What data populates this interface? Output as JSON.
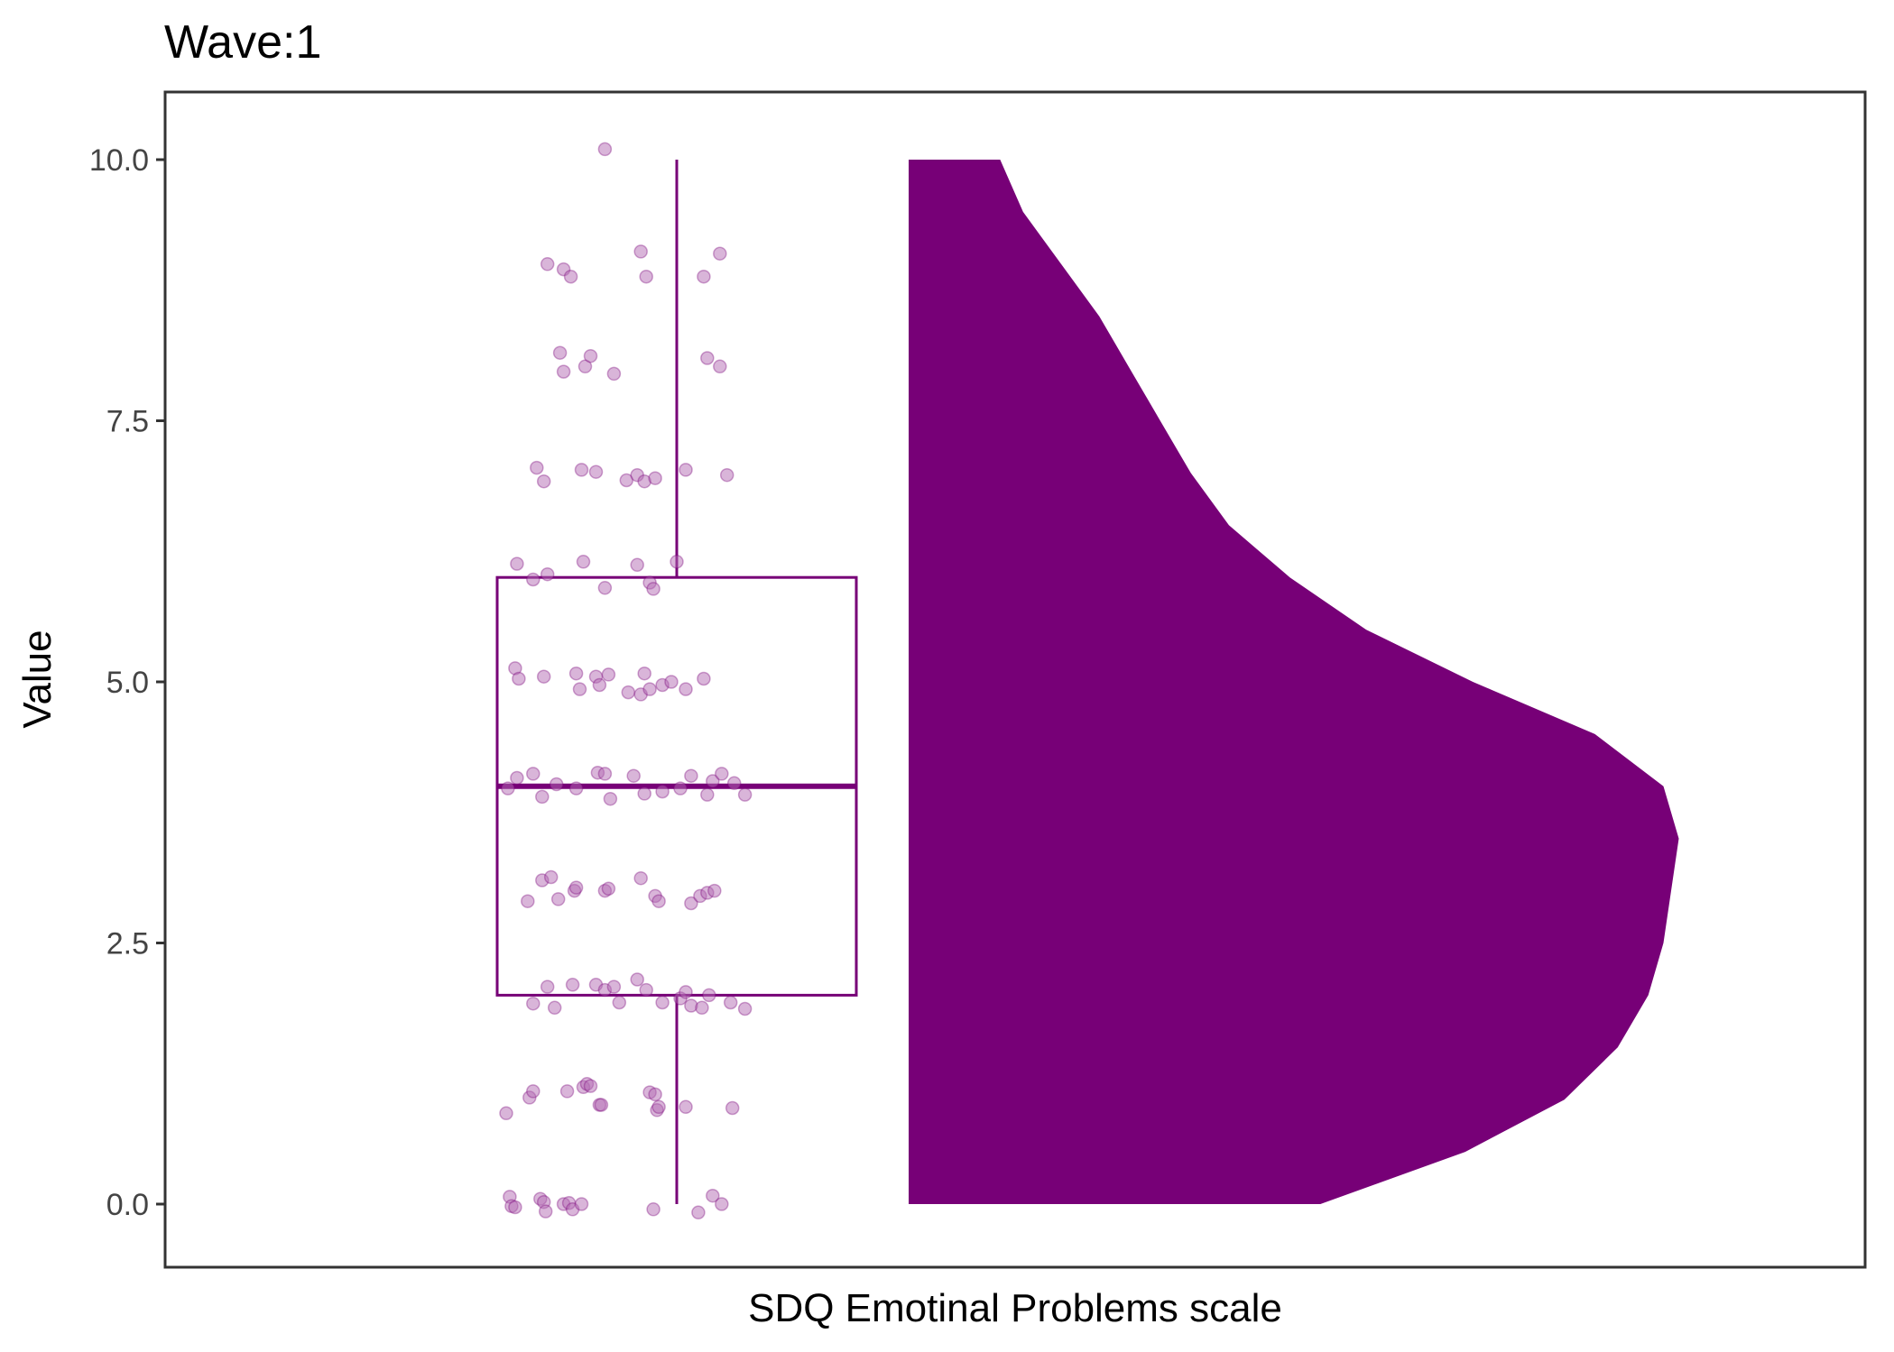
{
  "chart_data": {
    "type": "raincloud",
    "title": "Wave:1",
    "xlabel": "SDQ Emotinal Problems scale",
    "ylabel": "Value",
    "ylim": [
      -0.6,
      10.6
    ],
    "yticks": [
      "0.0",
      "2.5",
      "5.0",
      "7.5",
      "10.0"
    ],
    "ytick_values": [
      0,
      2.5,
      5,
      7.5,
      10
    ],
    "grid": false,
    "legend": "none",
    "colors": {
      "accent": "#770077",
      "points": "#b36bb3",
      "axis": "#333333"
    },
    "boxplot": {
      "min": 0,
      "q1": 2,
      "median": 4,
      "q3": 6,
      "max": 10
    },
    "density": {
      "values": [
        0,
        0.5,
        1,
        1.5,
        2,
        2.5,
        3,
        3.5,
        4,
        4.5,
        5,
        5.5,
        6,
        6.5,
        7,
        7.5,
        8,
        8.5,
        9,
        9.5,
        10
      ],
      "widths": [
        0.54,
        0.73,
        0.86,
        0.93,
        0.97,
        0.99,
        1.0,
        1.01,
        0.99,
        0.9,
        0.74,
        0.6,
        0.5,
        0.42,
        0.37,
        0.33,
        0.29,
        0.25,
        0.2,
        0.15,
        0.12
      ]
    },
    "points": [
      {
        "x": -0.4,
        "y": 10.1
      },
      {
        "x": -0.72,
        "y": 9.0
      },
      {
        "x": -0.63,
        "y": 8.95
      },
      {
        "x": -0.59,
        "y": 8.88
      },
      {
        "x": -0.17,
        "y": 8.88
      },
      {
        "x": -0.2,
        "y": 9.12
      },
      {
        "x": 0.15,
        "y": 8.88
      },
      {
        "x": 0.24,
        "y": 9.1
      },
      {
        "x": -0.65,
        "y": 8.15
      },
      {
        "x": -0.63,
        "y": 7.97
      },
      {
        "x": -0.51,
        "y": 8.02
      },
      {
        "x": -0.48,
        "y": 8.12
      },
      {
        "x": -0.35,
        "y": 7.95
      },
      {
        "x": 0.17,
        "y": 8.1
      },
      {
        "x": 0.24,
        "y": 8.02
      },
      {
        "x": -0.78,
        "y": 7.05
      },
      {
        "x": -0.74,
        "y": 6.92
      },
      {
        "x": -0.53,
        "y": 7.03
      },
      {
        "x": -0.45,
        "y": 7.01
      },
      {
        "x": -0.28,
        "y": 6.93
      },
      {
        "x": -0.22,
        "y": 6.98
      },
      {
        "x": -0.18,
        "y": 6.92
      },
      {
        "x": -0.12,
        "y": 6.95
      },
      {
        "x": 0.05,
        "y": 7.03
      },
      {
        "x": 0.28,
        "y": 6.98
      },
      {
        "x": -0.89,
        "y": 6.13
      },
      {
        "x": -0.8,
        "y": 5.98
      },
      {
        "x": -0.72,
        "y": 6.03
      },
      {
        "x": -0.52,
        "y": 6.15
      },
      {
        "x": -0.4,
        "y": 5.9
      },
      {
        "x": -0.22,
        "y": 6.12
      },
      {
        "x": -0.15,
        "y": 5.95
      },
      {
        "x": -0.13,
        "y": 5.89
      },
      {
        "x": 0.0,
        "y": 6.15
      },
      {
        "x": -0.9,
        "y": 5.13
      },
      {
        "x": -0.88,
        "y": 5.03
      },
      {
        "x": -0.74,
        "y": 5.05
      },
      {
        "x": -0.56,
        "y": 5.08
      },
      {
        "x": -0.54,
        "y": 4.93
      },
      {
        "x": -0.45,
        "y": 5.05
      },
      {
        "x": -0.43,
        "y": 4.97
      },
      {
        "x": -0.38,
        "y": 5.07
      },
      {
        "x": -0.27,
        "y": 4.9
      },
      {
        "x": -0.2,
        "y": 4.88
      },
      {
        "x": -0.18,
        "y": 5.08
      },
      {
        "x": -0.15,
        "y": 4.93
      },
      {
        "x": -0.08,
        "y": 4.97
      },
      {
        "x": -0.03,
        "y": 5.0
      },
      {
        "x": 0.05,
        "y": 4.93
      },
      {
        "x": 0.15,
        "y": 5.03
      },
      {
        "x": -0.94,
        "y": 3.98
      },
      {
        "x": -0.89,
        "y": 4.08
      },
      {
        "x": -0.8,
        "y": 4.12
      },
      {
        "x": -0.75,
        "y": 3.9
      },
      {
        "x": -0.67,
        "y": 4.02
      },
      {
        "x": -0.56,
        "y": 3.98
      },
      {
        "x": -0.44,
        "y": 4.13
      },
      {
        "x": -0.4,
        "y": 4.12
      },
      {
        "x": -0.37,
        "y": 3.88
      },
      {
        "x": -0.24,
        "y": 4.1
      },
      {
        "x": -0.18,
        "y": 3.93
      },
      {
        "x": -0.08,
        "y": 3.95
      },
      {
        "x": 0.02,
        "y": 3.98
      },
      {
        "x": 0.08,
        "y": 4.1
      },
      {
        "x": 0.17,
        "y": 3.92
      },
      {
        "x": 0.2,
        "y": 4.05
      },
      {
        "x": 0.25,
        "y": 4.12
      },
      {
        "x": 0.32,
        "y": 4.03
      },
      {
        "x": 0.38,
        "y": 3.92
      },
      {
        "x": -0.83,
        "y": 2.9
      },
      {
        "x": -0.75,
        "y": 3.1
      },
      {
        "x": -0.7,
        "y": 3.13
      },
      {
        "x": -0.66,
        "y": 2.92
      },
      {
        "x": -0.57,
        "y": 3.0
      },
      {
        "x": -0.56,
        "y": 3.03
      },
      {
        "x": -0.4,
        "y": 3.0
      },
      {
        "x": -0.38,
        "y": 3.02
      },
      {
        "x": -0.2,
        "y": 3.12
      },
      {
        "x": -0.12,
        "y": 2.95
      },
      {
        "x": -0.1,
        "y": 2.9
      },
      {
        "x": 0.08,
        "y": 2.88
      },
      {
        "x": 0.13,
        "y": 2.95
      },
      {
        "x": 0.17,
        "y": 2.98
      },
      {
        "x": 0.21,
        "y": 3.0
      },
      {
        "x": -0.8,
        "y": 1.92
      },
      {
        "x": -0.72,
        "y": 2.08
      },
      {
        "x": -0.68,
        "y": 1.88
      },
      {
        "x": -0.58,
        "y": 2.1
      },
      {
        "x": -0.45,
        "y": 2.1
      },
      {
        "x": -0.4,
        "y": 2.05
      },
      {
        "x": -0.35,
        "y": 2.08
      },
      {
        "x": -0.32,
        "y": 1.93
      },
      {
        "x": -0.22,
        "y": 2.15
      },
      {
        "x": -0.17,
        "y": 2.05
      },
      {
        "x": -0.08,
        "y": 1.93
      },
      {
        "x": 0.02,
        "y": 1.97
      },
      {
        "x": 0.05,
        "y": 2.03
      },
      {
        "x": 0.08,
        "y": 1.9
      },
      {
        "x": 0.14,
        "y": 1.88
      },
      {
        "x": 0.18,
        "y": 2.0
      },
      {
        "x": 0.3,
        "y": 1.93
      },
      {
        "x": 0.38,
        "y": 1.87
      },
      {
        "x": -0.95,
        "y": 0.87
      },
      {
        "x": -0.82,
        "y": 1.02
      },
      {
        "x": -0.8,
        "y": 1.08
      },
      {
        "x": -0.61,
        "y": 1.08
      },
      {
        "x": -0.52,
        "y": 1.12
      },
      {
        "x": -0.5,
        "y": 1.15
      },
      {
        "x": -0.48,
        "y": 1.13
      },
      {
        "x": -0.43,
        "y": 0.95
      },
      {
        "x": -0.42,
        "y": 0.95
      },
      {
        "x": -0.15,
        "y": 1.07
      },
      {
        "x": -0.12,
        "y": 1.05
      },
      {
        "x": -0.11,
        "y": 0.9
      },
      {
        "x": -0.1,
        "y": 0.93
      },
      {
        "x": 0.05,
        "y": 0.93
      },
      {
        "x": 0.31,
        "y": 0.92
      },
      {
        "x": -0.93,
        "y": 0.07
      },
      {
        "x": -0.92,
        "y": -0.02
      },
      {
        "x": -0.9,
        "y": -0.03
      },
      {
        "x": -0.76,
        "y": 0.05
      },
      {
        "x": -0.74,
        "y": 0.02
      },
      {
        "x": -0.73,
        "y": -0.07
      },
      {
        "x": -0.63,
        "y": 0.0
      },
      {
        "x": -0.6,
        "y": 0.01
      },
      {
        "x": -0.58,
        "y": -0.05
      },
      {
        "x": -0.53,
        "y": 0.0
      },
      {
        "x": -0.13,
        "y": -0.05
      },
      {
        "x": 0.12,
        "y": -0.08
      },
      {
        "x": 0.2,
        "y": 0.08
      },
      {
        "x": 0.25,
        "y": 0.0
      }
    ]
  }
}
